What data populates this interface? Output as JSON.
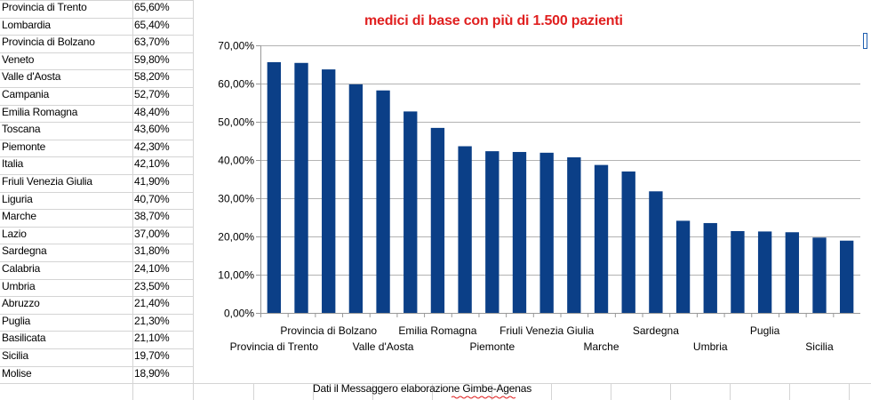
{
  "table": {
    "rows": [
      {
        "region": "Provincia di Trento",
        "value": "65,60%"
      },
      {
        "region": "Lombardia",
        "value": "65,40%"
      },
      {
        "region": "Provincia di Bolzano",
        "value": "63,70%"
      },
      {
        "region": "Veneto",
        "value": "59,80%"
      },
      {
        "region": "Valle d'Aosta",
        "value": "58,20%"
      },
      {
        "region": "Campania",
        "value": "52,70%"
      },
      {
        "region": "Emilia Romagna",
        "value": "48,40%"
      },
      {
        "region": "Toscana",
        "value": "43,60%"
      },
      {
        "region": "Piemonte",
        "value": "42,30%"
      },
      {
        "region": "Italia",
        "value": "42,10%"
      },
      {
        "region": "Friuli Venezia Giulia",
        "value": "41,90%"
      },
      {
        "region": "Liguria",
        "value": "40,70%"
      },
      {
        "region": "Marche",
        "value": "38,70%"
      },
      {
        "region": "Lazio",
        "value": "37,00%"
      },
      {
        "region": "Sardegna",
        "value": "31,80%"
      },
      {
        "region": "Calabria",
        "value": "24,10%"
      },
      {
        "region": "Umbria",
        "value": "23,50%"
      },
      {
        "region": "Abruzzo",
        "value": "21,40%"
      },
      {
        "region": "Puglia",
        "value": "21,30%"
      },
      {
        "region": "Basilicata",
        "value": "21,10%"
      },
      {
        "region": "Sicilia",
        "value": "19,70%"
      },
      {
        "region": "Molise",
        "value": "18,90%"
      }
    ]
  },
  "footer": {
    "note": "Dati il Messaggero elaborazione Gimbe-Agenas"
  },
  "colors": {
    "bar": "#0b3f87",
    "title": "#e02020",
    "grid": "#b3b3b3",
    "cell_border": "#d4d4d4"
  },
  "chart_data": {
    "type": "bar",
    "title": "medici di base con più di 1.500 pazienti",
    "xlabel": "",
    "ylabel": "",
    "ylim": [
      0,
      70
    ],
    "yticks": [
      0,
      10,
      20,
      30,
      40,
      50,
      60,
      70
    ],
    "ytick_labels": [
      "0,00%",
      "10,00%",
      "20,00%",
      "30,00%",
      "40,00%",
      "50,00%",
      "60,00%",
      "70,00%"
    ],
    "grid": true,
    "categories": [
      "Provincia di Trento",
      "Lombardia",
      "Provincia di Bolzano",
      "Veneto",
      "Valle d'Aosta",
      "Campania",
      "Emilia Romagna",
      "Toscana",
      "Piemonte",
      "Italia",
      "Friuli Venezia Giulia",
      "Liguria",
      "Marche",
      "Lazio",
      "Sardegna",
      "Calabria",
      "Umbria",
      "Abruzzo",
      "Puglia",
      "Basilicata",
      "Sicilia",
      "Molise"
    ],
    "visible_category_labels": [
      {
        "index": 0,
        "label": "Provincia di Trento"
      },
      {
        "index": 2,
        "label": "Provincia di Bolzano"
      },
      {
        "index": 4,
        "label": "Valle d'Aosta"
      },
      {
        "index": 6,
        "label": "Emilia Romagna"
      },
      {
        "index": 8,
        "label": "Piemonte"
      },
      {
        "index": 10,
        "label": "Friuli Venezia Giulia"
      },
      {
        "index": 12,
        "label": "Marche"
      },
      {
        "index": 14,
        "label": "Sardegna"
      },
      {
        "index": 16,
        "label": "Umbria"
      },
      {
        "index": 18,
        "label": "Puglia"
      },
      {
        "index": 20,
        "label": "Sicilia"
      }
    ],
    "values": [
      65.6,
      65.4,
      63.7,
      59.8,
      58.2,
      52.7,
      48.4,
      43.6,
      42.3,
      42.1,
      41.9,
      40.7,
      38.7,
      37.0,
      31.8,
      24.1,
      23.5,
      21.4,
      21.3,
      21.1,
      19.7,
      18.9
    ]
  }
}
